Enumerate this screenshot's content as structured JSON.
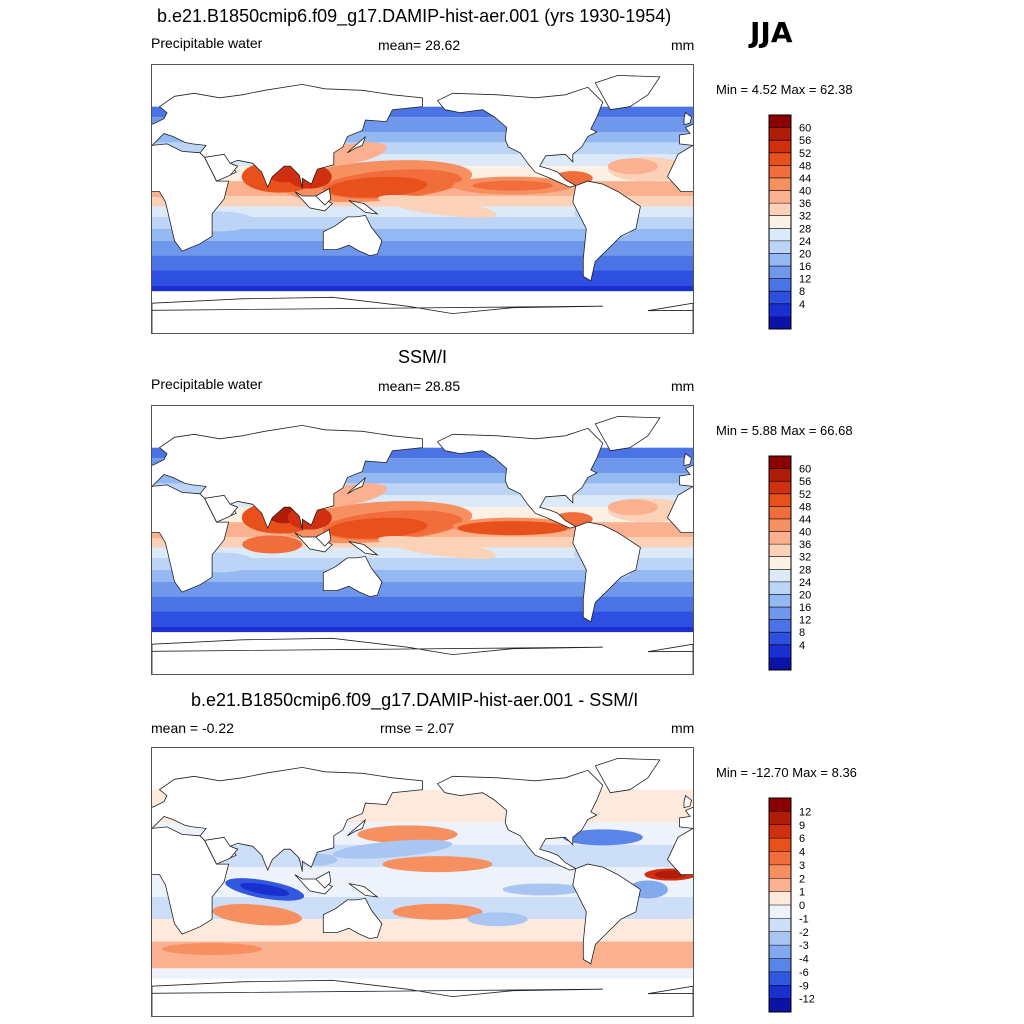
{
  "header": {
    "season": "JJA"
  },
  "panels": [
    {
      "title": "b.e21.B1850cmip6.f09_g17.DAMIP-hist-aer.001 (yrs 1930-1954)",
      "left_label": "Precipitable water",
      "center_label": "mean=  28.62",
      "units": "mm",
      "minmax": "Min =   4.52 Max =  62.38"
    },
    {
      "title": "SSM/I",
      "left_label": "Precipitable water",
      "center_label": "mean=  28.85",
      "units": "mm",
      "minmax": "Min =   5.88 Max =  66.68"
    },
    {
      "title": "b.e21.B1850cmip6.f09_g17.DAMIP-hist-aer.001 - SSM/I",
      "left_label": "mean =  -0.22",
      "center_label": "rmse =   2.07",
      "units": "mm",
      "minmax": "Min = -12.70 Max =   8.36"
    }
  ],
  "chart_data": [
    {
      "type": "heatmap",
      "title": "b.e21.B1850cmip6.f09_g17.DAMIP-hist-aer.001 (yrs 1930-1954)",
      "variable": "Precipitable water",
      "units": "mm",
      "mean": 28.62,
      "min": 4.52,
      "max": 62.38,
      "colorbar": {
        "levels": [
          "60",
          "56",
          "52",
          "48",
          "44",
          "40",
          "36",
          "32",
          "28",
          "24",
          "20",
          "16",
          "12",
          "8",
          "4"
        ],
        "colors": [
          "#8b0000",
          "#b01c07",
          "#d13010",
          "#e8501c",
          "#f26d3c",
          "#f79060",
          "#fbb190",
          "#fbd2b8",
          "#fdf0e4",
          "#dce9f8",
          "#bcd4f6",
          "#94b8f2",
          "#6f98ec",
          "#4a74e6",
          "#2d50e0",
          "#1a2fcf",
          "#0a13a5"
        ]
      }
    },
    {
      "type": "heatmap",
      "title": "SSM/I",
      "variable": "Precipitable water",
      "units": "mm",
      "mean": 28.85,
      "min": 5.88,
      "max": 66.68,
      "colorbar": {
        "levels": [
          "60",
          "56",
          "52",
          "48",
          "44",
          "40",
          "36",
          "32",
          "28",
          "24",
          "20",
          "16",
          "12",
          "8",
          "4"
        ],
        "colors": [
          "#8b0000",
          "#b01c07",
          "#d13010",
          "#e8501c",
          "#f26d3c",
          "#f79060",
          "#fbb190",
          "#fbd2b8",
          "#fdf0e4",
          "#dce9f8",
          "#bcd4f6",
          "#94b8f2",
          "#6f98ec",
          "#4a74e6",
          "#2d50e0",
          "#1a2fcf",
          "#0a13a5"
        ]
      }
    },
    {
      "type": "heatmap",
      "title": "b.e21.B1850cmip6.f09_g17.DAMIP-hist-aer.001 - SSM/I",
      "units": "mm",
      "mean": -0.22,
      "rmse": 2.07,
      "min": -12.7,
      "max": 8.36,
      "colorbar": {
        "levels": [
          "12",
          "9",
          "6",
          "4",
          "3",
          "2",
          "1",
          "0",
          "-1",
          "-2",
          "-3",
          "-4",
          "-6",
          "-9",
          "-12"
        ],
        "colors": [
          "#8b0000",
          "#b01c07",
          "#d13010",
          "#e8501c",
          "#f26d3c",
          "#f79060",
          "#fbb190",
          "#fdeadc",
          "#eef3fb",
          "#cddff8",
          "#a9c6f3",
          "#82a9ee",
          "#5a85e8",
          "#3358e0",
          "#1a2fcf",
          "#0a13a5"
        ]
      }
    }
  ]
}
